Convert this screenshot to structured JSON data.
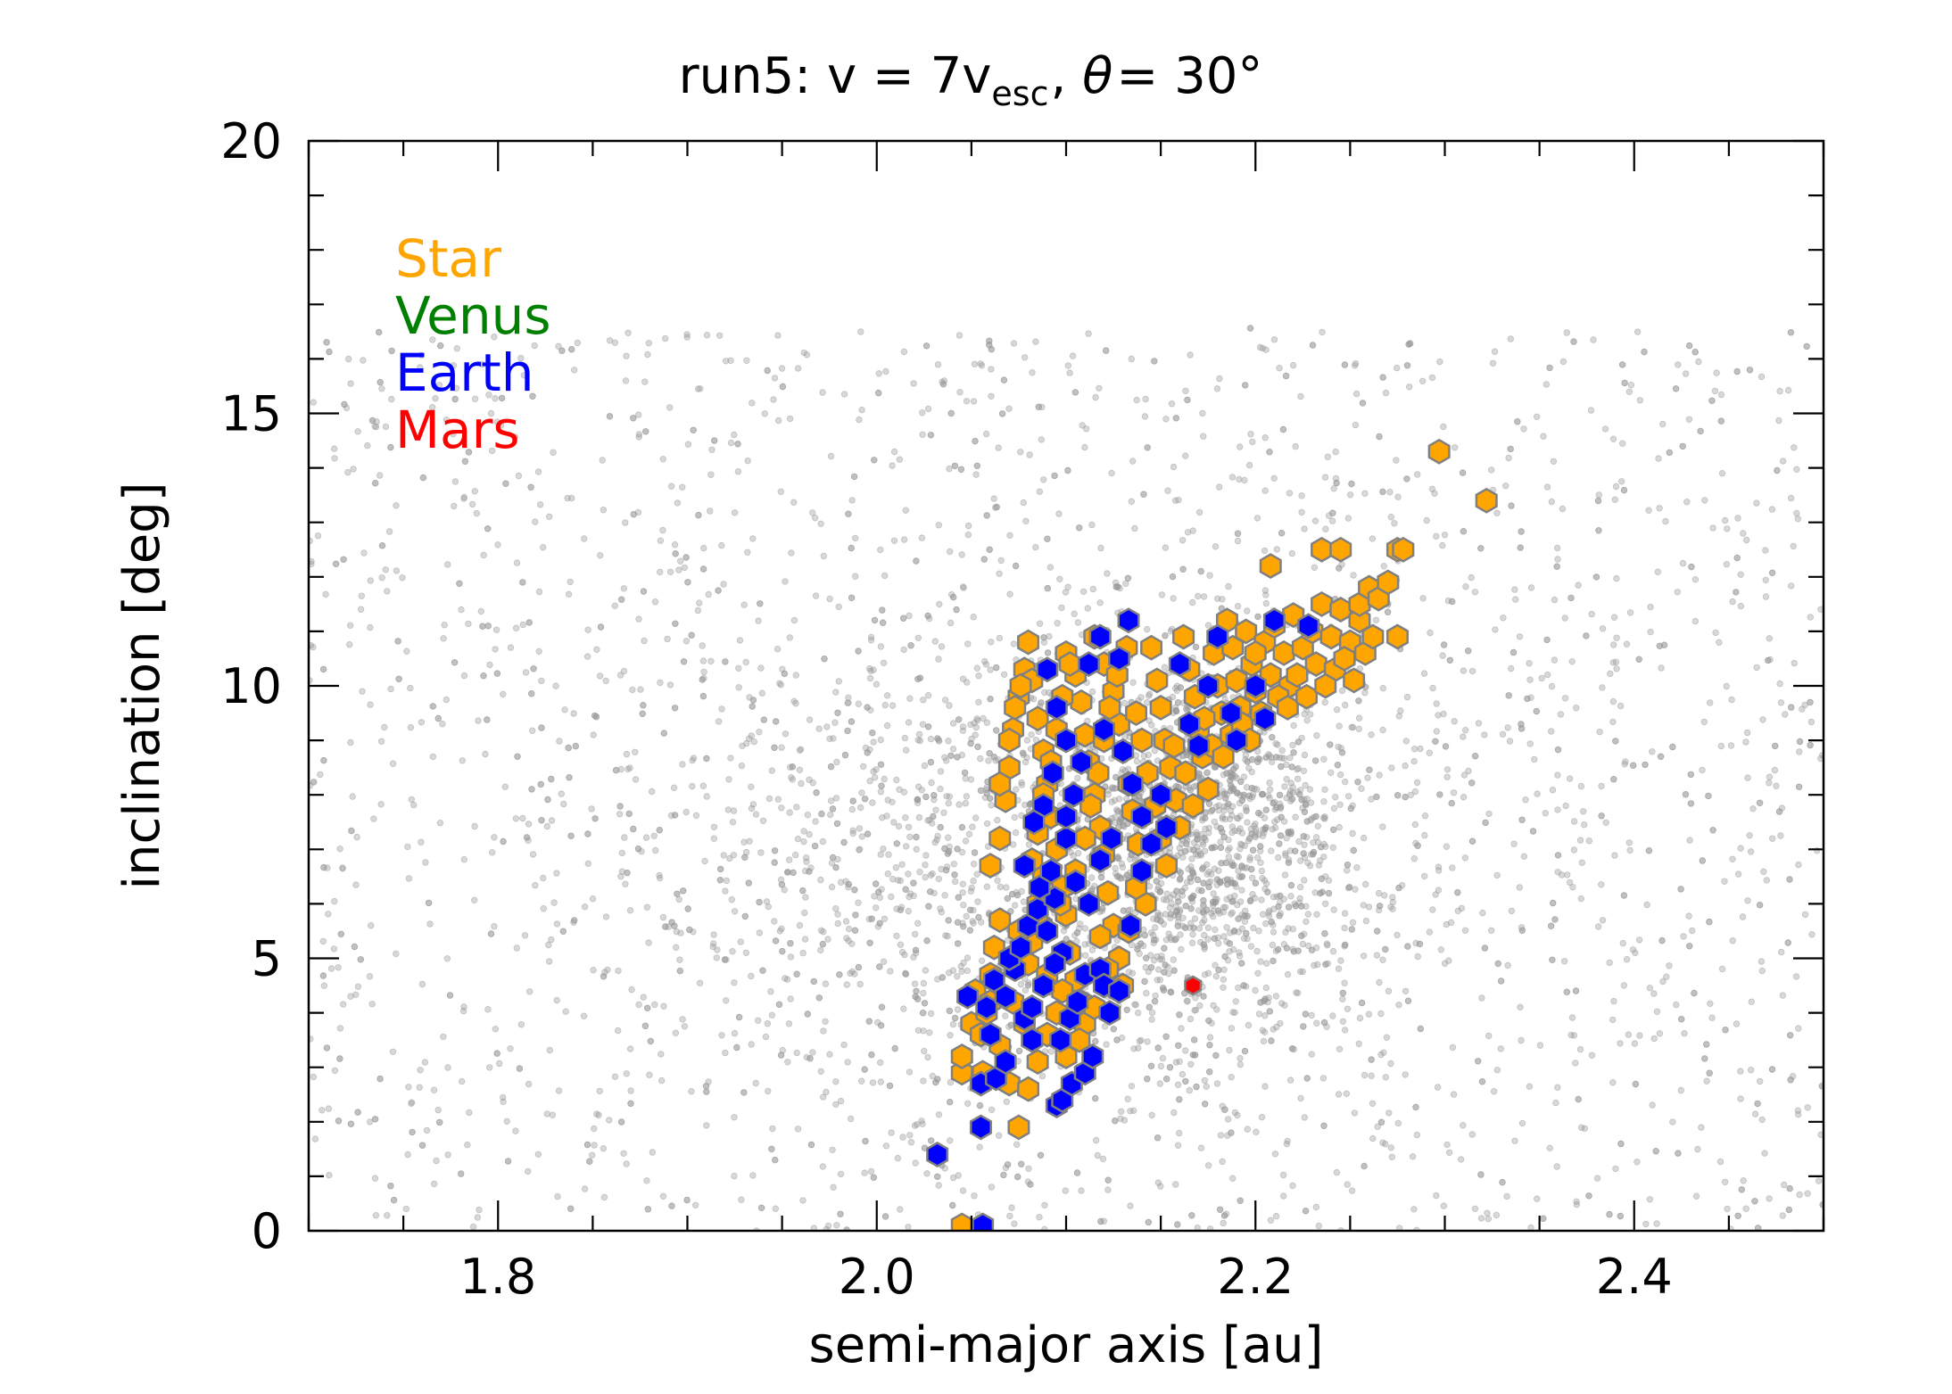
{
  "chart_data": {
    "type": "scatter",
    "title": {
      "prefix": "run5: v = 7v",
      "subscript": "esc",
      "middle": ", ",
      "theta": "θ",
      "suffix": "= 30°"
    },
    "xlabel": "semi-major axis [au]",
    "ylabel": "inclination [deg]",
    "xlim": [
      1.7,
      2.5
    ],
    "ylim": [
      0,
      20
    ],
    "xticks": [
      1.8,
      2.0,
      2.2,
      2.4
    ],
    "xtick_labels": [
      "1.8",
      "2.0",
      "2.2",
      "2.4"
    ],
    "yticks": [
      0,
      5,
      10,
      15,
      20
    ],
    "ytick_labels": [
      "0",
      "5",
      "10",
      "15",
      "20"
    ],
    "x_minor_step": 0.05,
    "y_minor_step": 1,
    "grid": false,
    "legend_position": "top-left",
    "legend": [
      {
        "label": "Star",
        "color": "#FFA500"
      },
      {
        "label": "Venus",
        "color": "#008000"
      },
      {
        "label": "Earth",
        "color": "#0000FF"
      },
      {
        "label": "Mars",
        "color": "#FF0000"
      }
    ],
    "background": {
      "name": "background",
      "color": "#999999",
      "marker": "small dot",
      "count": 5000,
      "description_x_range": [
        1.7,
        2.5
      ],
      "description_y_range": [
        0,
        17
      ]
    },
    "series": [
      {
        "name": "Star",
        "color": "#FFA500",
        "edgecolor": "#808080",
        "marker": "hexagon",
        "points": [
          [
            2.045,
            0.1
          ],
          [
            2.045,
            2.9
          ],
          [
            2.045,
            3.2
          ],
          [
            2.05,
            3.8
          ],
          [
            2.052,
            4.4
          ],
          [
            2.055,
            3.6
          ],
          [
            2.058,
            4.0
          ],
          [
            2.06,
            4.7
          ],
          [
            2.062,
            5.2
          ],
          [
            2.065,
            5.7
          ],
          [
            2.065,
            3.4
          ],
          [
            2.07,
            2.7
          ],
          [
            2.075,
            1.9
          ],
          [
            2.072,
            4.2
          ],
          [
            2.078,
            3.8
          ],
          [
            2.08,
            4.9
          ],
          [
            2.082,
            5.3
          ],
          [
            2.085,
            6.0
          ],
          [
            2.088,
            6.5
          ],
          [
            2.06,
            6.7
          ],
          [
            2.065,
            7.2
          ],
          [
            2.068,
            7.9
          ],
          [
            2.07,
            8.5
          ],
          [
            2.072,
            9.2
          ],
          [
            2.075,
            9.8
          ],
          [
            2.078,
            10.3
          ],
          [
            2.08,
            10.8
          ],
          [
            2.082,
            10.1
          ],
          [
            2.085,
            9.4
          ],
          [
            2.088,
            8.8
          ],
          [
            2.09,
            8.2
          ],
          [
            2.092,
            7.6
          ],
          [
            2.095,
            7.0
          ],
          [
            2.098,
            6.3
          ],
          [
            2.1,
            5.8
          ],
          [
            2.102,
            5.1
          ],
          [
            2.105,
            4.6
          ],
          [
            2.108,
            4.2
          ],
          [
            2.11,
            3.8
          ],
          [
            2.09,
            3.6
          ],
          [
            2.095,
            4.0
          ],
          [
            2.098,
            4.4
          ],
          [
            2.1,
            10.6
          ],
          [
            2.105,
            10.2
          ],
          [
            2.108,
            9.7
          ],
          [
            2.11,
            9.1
          ],
          [
            2.112,
            8.6
          ],
          [
            2.115,
            8.0
          ],
          [
            2.118,
            7.4
          ],
          [
            2.12,
            6.9
          ],
          [
            2.122,
            6.2
          ],
          [
            2.125,
            5.6
          ],
          [
            2.128,
            5.0
          ],
          [
            2.13,
            4.5
          ],
          [
            2.115,
            10.9
          ],
          [
            2.12,
            10.4
          ],
          [
            2.125,
            9.9
          ],
          [
            2.128,
            9.3
          ],
          [
            2.13,
            8.8
          ],
          [
            2.133,
            8.2
          ],
          [
            2.135,
            7.7
          ],
          [
            2.138,
            7.1
          ],
          [
            2.14,
            6.6
          ],
          [
            2.142,
            6.0
          ],
          [
            2.145,
            10.7
          ],
          [
            2.148,
            10.1
          ],
          [
            2.15,
            9.6
          ],
          [
            2.152,
            9.0
          ],
          [
            2.155,
            8.5
          ],
          [
            2.158,
            7.9
          ],
          [
            2.16,
            7.4
          ],
          [
            2.162,
            10.9
          ],
          [
            2.165,
            10.3
          ],
          [
            2.168,
            9.8
          ],
          [
            2.17,
            9.2
          ],
          [
            2.172,
            8.7
          ],
          [
            2.175,
            8.1
          ],
          [
            2.178,
            10.6
          ],
          [
            2.18,
            10.0
          ],
          [
            2.182,
            9.5
          ],
          [
            2.185,
            11.2
          ],
          [
            2.188,
            10.7
          ],
          [
            2.19,
            10.1
          ],
          [
            2.192,
            9.6
          ],
          [
            2.195,
            11.0
          ],
          [
            2.198,
            10.4
          ],
          [
            2.2,
            9.9
          ],
          [
            2.205,
            10.8
          ],
          [
            2.208,
            10.2
          ],
          [
            2.21,
            11.1
          ],
          [
            2.215,
            10.6
          ],
          [
            2.218,
            10.0
          ],
          [
            2.22,
            11.3
          ],
          [
            2.225,
            10.7
          ],
          [
            2.23,
            11.0
          ],
          [
            2.232,
            10.4
          ],
          [
            2.235,
            11.5
          ],
          [
            2.24,
            10.9
          ],
          [
            2.242,
            10.3
          ],
          [
            2.245,
            11.4
          ],
          [
            2.25,
            10.8
          ],
          [
            2.255,
            11.2
          ],
          [
            2.208,
            12.2
          ],
          [
            2.235,
            12.5
          ],
          [
            2.245,
            12.5
          ],
          [
            2.255,
            11.5
          ],
          [
            2.26,
            11.8
          ],
          [
            2.265,
            11.6
          ],
          [
            2.27,
            11.9
          ],
          [
            2.275,
            12.5
          ],
          [
            2.278,
            12.5
          ],
          [
            2.275,
            10.9
          ],
          [
            2.297,
            14.3
          ],
          [
            2.322,
            13.4
          ],
          [
            2.07,
            5.0
          ],
          [
            2.075,
            5.5
          ],
          [
            2.082,
            6.8
          ],
          [
            2.085,
            7.3
          ],
          [
            2.088,
            8.0
          ],
          [
            2.092,
            8.6
          ],
          [
            2.095,
            9.2
          ],
          [
            2.098,
            9.8
          ],
          [
            2.102,
            10.4
          ],
          [
            2.065,
            8.2
          ],
          [
            2.07,
            9.0
          ],
          [
            2.073,
            9.6
          ],
          [
            2.076,
            10.0
          ],
          [
            2.06,
            4.2
          ],
          [
            2.056,
            2.9
          ],
          [
            2.08,
            2.6
          ],
          [
            2.085,
            3.1
          ],
          [
            2.105,
            6.6
          ],
          [
            2.11,
            7.2
          ],
          [
            2.113,
            7.8
          ],
          [
            2.117,
            8.4
          ],
          [
            2.12,
            9.0
          ],
          [
            2.123,
            9.6
          ],
          [
            2.127,
            10.2
          ],
          [
            2.132,
            10.7
          ],
          [
            2.137,
            9.5
          ],
          [
            2.14,
            9.0
          ],
          [
            2.143,
            8.4
          ],
          [
            2.147,
            7.8
          ],
          [
            2.15,
            7.2
          ],
          [
            2.153,
            6.7
          ],
          [
            2.118,
            5.4
          ],
          [
            2.122,
            4.8
          ],
          [
            2.115,
            4.1
          ],
          [
            2.107,
            3.5
          ],
          [
            2.1,
            3.2
          ],
          [
            2.09,
            4.7
          ],
          [
            2.087,
            5.6
          ],
          [
            2.097,
            6.0
          ],
          [
            2.133,
            5.5
          ],
          [
            2.137,
            6.3
          ],
          [
            2.157,
            8.9
          ],
          [
            2.163,
            8.4
          ],
          [
            2.167,
            7.8
          ],
          [
            2.173,
            9.4
          ],
          [
            2.177,
            8.9
          ],
          [
            2.183,
            8.7
          ],
          [
            2.187,
            9.1
          ],
          [
            2.193,
            9.3
          ],
          [
            2.197,
            9.0
          ],
          [
            2.2,
            10.6
          ],
          [
            2.203,
            9.5
          ],
          [
            2.212,
            9.8
          ],
          [
            2.217,
            9.6
          ],
          [
            2.222,
            10.2
          ],
          [
            2.227,
            9.8
          ],
          [
            2.237,
            10.0
          ],
          [
            2.247,
            10.5
          ],
          [
            2.252,
            10.1
          ],
          [
            2.258,
            10.6
          ],
          [
            2.262,
            10.9
          ]
        ]
      },
      {
        "name": "Venus",
        "color": "#008000",
        "edgecolor": "#808080",
        "marker": "hexagon",
        "points": []
      },
      {
        "name": "Earth",
        "color": "#0000FF",
        "edgecolor": "#808080",
        "marker": "hexagon",
        "points": [
          [
            2.056,
            0.1
          ],
          [
            2.032,
            1.4
          ],
          [
            2.055,
            1.9
          ],
          [
            2.055,
            2.7
          ],
          [
            2.063,
            2.8
          ],
          [
            2.068,
            3.1
          ],
          [
            2.06,
            3.6
          ],
          [
            2.048,
            4.3
          ],
          [
            2.058,
            4.1
          ],
          [
            2.062,
            4.6
          ],
          [
            2.068,
            4.3
          ],
          [
            2.073,
            4.8
          ],
          [
            2.078,
            3.9
          ],
          [
            2.082,
            3.5
          ],
          [
            2.07,
            5.0
          ],
          [
            2.076,
            5.2
          ],
          [
            2.08,
            5.6
          ],
          [
            2.085,
            5.9
          ],
          [
            2.09,
            5.5
          ],
          [
            2.094,
            6.1
          ],
          [
            2.098,
            5.1
          ],
          [
            2.095,
            2.3
          ],
          [
            2.098,
            2.4
          ],
          [
            2.103,
            2.7
          ],
          [
            2.11,
            2.9
          ],
          [
            2.114,
            3.2
          ],
          [
            2.097,
            3.5
          ],
          [
            2.102,
            3.9
          ],
          [
            2.106,
            4.2
          ],
          [
            2.11,
            4.7
          ],
          [
            2.118,
            4.8
          ],
          [
            2.12,
            4.5
          ],
          [
            2.123,
            4.0
          ],
          [
            2.128,
            4.4
          ],
          [
            2.134,
            5.6
          ],
          [
            2.14,
            6.6
          ],
          [
            2.145,
            7.1
          ],
          [
            2.153,
            7.4
          ],
          [
            2.15,
            8.0
          ],
          [
            2.14,
            7.6
          ],
          [
            2.135,
            8.2
          ],
          [
            2.13,
            8.8
          ],
          [
            2.12,
            9.2
          ],
          [
            2.108,
            8.6
          ],
          [
            2.1,
            9.0
          ],
          [
            2.093,
            8.4
          ],
          [
            2.088,
            7.8
          ],
          [
            2.083,
            7.5
          ],
          [
            2.078,
            6.7
          ],
          [
            2.086,
            6.3
          ],
          [
            2.092,
            6.6
          ],
          [
            2.1,
            7.2
          ],
          [
            2.105,
            6.4
          ],
          [
            2.112,
            6.0
          ],
          [
            2.118,
            6.8
          ],
          [
            2.124,
            7.2
          ],
          [
            2.095,
            9.6
          ],
          [
            2.09,
            10.3
          ],
          [
            2.112,
            10.4
          ],
          [
            2.118,
            10.9
          ],
          [
            2.128,
            10.5
          ],
          [
            2.133,
            11.2
          ],
          [
            2.16,
            10.4
          ],
          [
            2.165,
            9.3
          ],
          [
            2.17,
            8.9
          ],
          [
            2.175,
            10.0
          ],
          [
            2.18,
            10.9
          ],
          [
            2.187,
            9.5
          ],
          [
            2.19,
            9.0
          ],
          [
            2.2,
            10.0
          ],
          [
            2.205,
            9.4
          ],
          [
            2.21,
            11.2
          ],
          [
            2.228,
            11.1
          ],
          [
            2.082,
            4.1
          ],
          [
            2.088,
            4.5
          ],
          [
            2.094,
            4.9
          ],
          [
            2.1,
            7.6
          ],
          [
            2.104,
            8.0
          ]
        ]
      },
      {
        "name": "Mars",
        "color": "#FF0000",
        "edgecolor": "#808080",
        "marker": "hexagon",
        "points": [
          [
            2.167,
            4.5
          ]
        ]
      }
    ]
  }
}
